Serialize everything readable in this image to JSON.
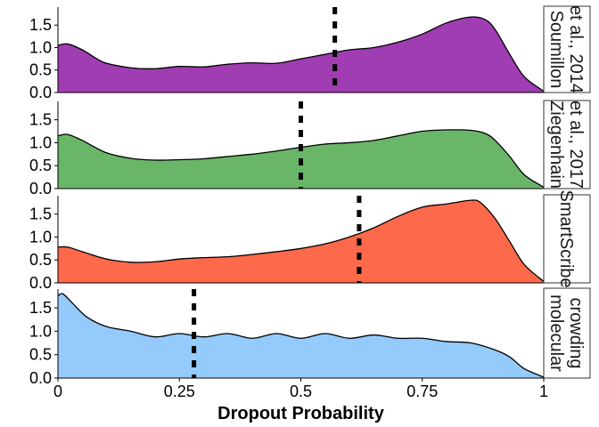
{
  "chart_data": {
    "type": "area",
    "subtype": "faceted-density-ridges",
    "xlabel": "Dropout Probability",
    "xlim": [
      0,
      1
    ],
    "x_ticks": [
      0,
      0.25,
      0.5,
      0.75,
      1
    ],
    "x_tick_labels": [
      "0",
      "0.25",
      "0.5",
      "0.75",
      "1"
    ],
    "ylim": [
      0,
      1.9
    ],
    "y_ticks": [
      0,
      0.5,
      1.0,
      1.5
    ],
    "y_tick_labels": [
      "0.0",
      "0.5",
      "1.0",
      "1.5"
    ],
    "grid": false,
    "legend": "none",
    "panels": [
      {
        "strip_lines": [
          "Soumillon",
          "et al., 2014"
        ],
        "color": "#A03DB3",
        "mean_marker": 0.57,
        "x": [
          0,
          0.02,
          0.05,
          0.08,
          0.1,
          0.15,
          0.2,
          0.25,
          0.3,
          0.35,
          0.4,
          0.45,
          0.5,
          0.55,
          0.6,
          0.65,
          0.7,
          0.75,
          0.8,
          0.85,
          0.88,
          0.9,
          0.93,
          0.96,
          1
        ],
        "y": [
          1.05,
          1.08,
          0.95,
          0.75,
          0.65,
          0.55,
          0.53,
          0.58,
          0.57,
          0.63,
          0.66,
          0.65,
          0.75,
          0.85,
          0.95,
          1.0,
          1.12,
          1.3,
          1.55,
          1.68,
          1.62,
          1.4,
          0.85,
          0.35,
          0.03
        ]
      },
      {
        "strip_lines": [
          "Ziegenhain",
          "et al., 2017"
        ],
        "color": "#6AB668",
        "mean_marker": 0.5,
        "x": [
          0,
          0.02,
          0.05,
          0.1,
          0.15,
          0.2,
          0.25,
          0.3,
          0.35,
          0.4,
          0.45,
          0.5,
          0.55,
          0.6,
          0.65,
          0.7,
          0.75,
          0.8,
          0.85,
          0.88,
          0.9,
          0.93,
          0.96,
          1
        ],
        "y": [
          1.15,
          1.18,
          1.05,
          0.78,
          0.66,
          0.62,
          0.63,
          0.65,
          0.7,
          0.75,
          0.82,
          0.9,
          0.97,
          1.0,
          1.05,
          1.15,
          1.25,
          1.28,
          1.27,
          1.2,
          1.05,
          0.7,
          0.3,
          0.03
        ]
      },
      {
        "strip_lines": [
          "SmartScribe"
        ],
        "color": "#FC6A4B",
        "mean_marker": 0.62,
        "x": [
          0,
          0.02,
          0.05,
          0.1,
          0.15,
          0.2,
          0.25,
          0.3,
          0.35,
          0.4,
          0.45,
          0.5,
          0.55,
          0.6,
          0.65,
          0.7,
          0.75,
          0.8,
          0.85,
          0.87,
          0.9,
          0.93,
          0.96,
          1
        ],
        "y": [
          0.78,
          0.78,
          0.68,
          0.52,
          0.45,
          0.46,
          0.52,
          0.55,
          0.57,
          0.62,
          0.68,
          0.75,
          0.85,
          1.0,
          1.2,
          1.45,
          1.65,
          1.72,
          1.8,
          1.75,
          1.4,
          0.9,
          0.4,
          0.03
        ]
      },
      {
        "strip_lines": [
          "molecular",
          "crowding"
        ],
        "color": "#94CBFC",
        "mean_marker": 0.28,
        "x": [
          0,
          0.01,
          0.03,
          0.06,
          0.1,
          0.15,
          0.2,
          0.25,
          0.3,
          0.35,
          0.4,
          0.45,
          0.5,
          0.55,
          0.6,
          0.65,
          0.7,
          0.75,
          0.8,
          0.85,
          0.9,
          0.93,
          0.96,
          1
        ],
        "y": [
          1.75,
          1.8,
          1.6,
          1.3,
          1.1,
          1.0,
          0.88,
          0.95,
          0.88,
          0.95,
          0.85,
          0.95,
          0.85,
          0.95,
          0.85,
          0.92,
          0.85,
          0.85,
          0.78,
          0.75,
          0.6,
          0.45,
          0.2,
          0.02
        ]
      }
    ]
  }
}
